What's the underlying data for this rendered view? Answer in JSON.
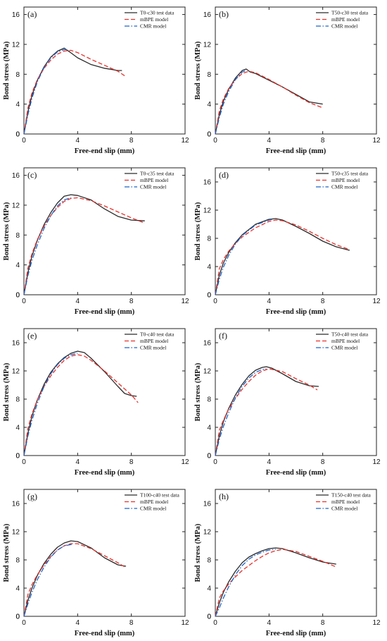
{
  "figure": {
    "xlabel": "Free-end slip (mm)",
    "ylabel": "Bond stress (MPa)"
  },
  "colors": {
    "test": "#2a2a2a",
    "mbpe": "#e8312b",
    "cmr": "#1f64c8"
  },
  "chart_data": [
    {
      "type": "line",
      "panel_label": "(a)",
      "xlabel": "Free-end slip (mm)",
      "ylabel": "Bond stress (MPa)",
      "xlim": [
        0,
        12
      ],
      "ylim": [
        0,
        17
      ],
      "xticks": [
        0,
        4,
        8,
        12
      ],
      "yticks": [
        0,
        4,
        8,
        12,
        16
      ],
      "series": [
        {
          "name": "T0-c30 test data",
          "style": "solid",
          "x": [
            0,
            0.3,
            0.6,
            1,
            1.5,
            2,
            2.5,
            3,
            3.4,
            4,
            5,
            6,
            7,
            7.3
          ],
          "y": [
            0,
            3,
            5.2,
            7.2,
            9,
            10.3,
            11.1,
            11.5,
            11,
            10.2,
            9.3,
            8.8,
            8.5,
            8.5
          ]
        },
        {
          "name": "mBPE model",
          "style": "dashed",
          "x": [
            0,
            0.3,
            0.6,
            1,
            1.5,
            2,
            2.5,
            3,
            3.5,
            4,
            5,
            6,
            7,
            7.5
          ],
          "y": [
            0,
            3.5,
            5.5,
            7.3,
            8.8,
            9.9,
            10.7,
            11.1,
            11.2,
            10.9,
            10,
            9.2,
            8.4,
            7.8
          ]
        },
        {
          "name": "CMR model",
          "style": "dashdot",
          "x": [
            0,
            0.3,
            0.6,
            1,
            1.5,
            2,
            2.5,
            3,
            3.3
          ],
          "y": [
            0,
            2.6,
            4.8,
            7,
            8.9,
            10.2,
            11,
            11.3,
            11.3
          ]
        }
      ]
    },
    {
      "type": "line",
      "panel_label": "(b)",
      "xlabel": "Free-end slip (mm)",
      "ylabel": "Bond stress (MPa)",
      "xlim": [
        0,
        12
      ],
      "ylim": [
        0,
        17
      ],
      "xticks": [
        0,
        4,
        8,
        12
      ],
      "yticks": [
        0,
        4,
        8,
        12,
        16
      ],
      "series": [
        {
          "name": "T50-c30 test data",
          "style": "solid",
          "x": [
            0,
            0.3,
            0.6,
            1,
            1.5,
            2,
            2.3,
            2.6,
            3,
            4,
            5,
            6,
            7,
            8
          ],
          "y": [
            0,
            2.6,
            4.4,
            6,
            7.5,
            8.5,
            8.7,
            8.3,
            8.1,
            7.2,
            6.3,
            5.3,
            4.3,
            4
          ]
        },
        {
          "name": "mBPE model",
          "style": "dashed",
          "x": [
            0,
            0.3,
            0.6,
            1,
            1.5,
            2,
            2.5,
            3,
            4,
            5,
            6,
            7,
            8
          ],
          "y": [
            0,
            3.1,
            4.7,
            6.1,
            7.3,
            8.1,
            8.4,
            8.2,
            7.3,
            6.3,
            5.2,
            4.2,
            3.5
          ]
        },
        {
          "name": "CMR model",
          "style": "dashdot",
          "x": [
            0,
            0.3,
            0.6,
            1,
            1.5,
            2,
            2.3
          ],
          "y": [
            0,
            2.2,
            4,
            5.7,
            7.3,
            8.3,
            8.5
          ]
        }
      ]
    },
    {
      "type": "line",
      "panel_label": "(c)",
      "xlabel": "Free-end slip (mm)",
      "ylabel": "Bond stress (MPa)",
      "xlim": [
        0,
        12
      ],
      "ylim": [
        0,
        17
      ],
      "xticks": [
        0,
        4,
        8,
        12
      ],
      "yticks": [
        0,
        4,
        8,
        12,
        16
      ],
      "series": [
        {
          "name": "T0-c35 test data",
          "style": "solid",
          "x": [
            0,
            0.3,
            0.6,
            1,
            1.5,
            2,
            2.5,
            3,
            3.5,
            4,
            5,
            6,
            7,
            8,
            9
          ],
          "y": [
            0,
            3,
            5.2,
            7.3,
            9.4,
            11,
            12.3,
            13.2,
            13.4,
            13.3,
            12.7,
            11.5,
            10.5,
            10,
            9.9
          ]
        },
        {
          "name": "mBPE model",
          "style": "dashed",
          "x": [
            0,
            0.3,
            0.6,
            1,
            1.5,
            2,
            2.5,
            3,
            3.5,
            4,
            5,
            6,
            7,
            8,
            9
          ],
          "y": [
            0,
            3.6,
            5.5,
            7.4,
            9.2,
            10.6,
            11.7,
            12.5,
            12.9,
            13,
            12.6,
            11.9,
            11.1,
            10.3,
            9.6
          ]
        },
        {
          "name": "CMR model",
          "style": "dashdot",
          "x": [
            0,
            0.3,
            0.6,
            1,
            1.5,
            2,
            2.5,
            3,
            3.5
          ],
          "y": [
            0,
            2.6,
            4.6,
            6.7,
            8.9,
            10.6,
            11.9,
            12.7,
            13
          ]
        }
      ]
    },
    {
      "type": "line",
      "panel_label": "(d)",
      "xlabel": "Free-end slip (mm)",
      "ylabel": "Bond stress (MPa)",
      "xlim": [
        0,
        12
      ],
      "ylim": [
        0,
        18
      ],
      "xticks": [
        0,
        4,
        8,
        12
      ],
      "yticks": [
        0,
        4,
        8,
        12,
        16
      ],
      "series": [
        {
          "name": "T50-c35 test data",
          "style": "solid",
          "x": [
            0,
            0.3,
            0.6,
            1,
            1.5,
            2,
            3,
            4,
            4.5,
            5,
            6,
            7,
            8,
            9,
            10
          ],
          "y": [
            0,
            2.8,
            4.5,
            6,
            7.4,
            8.5,
            10,
            10.7,
            10.8,
            10.6,
            9.7,
            8.7,
            7.6,
            6.8,
            6.3
          ]
        },
        {
          "name": "mBPE model",
          "style": "dashed",
          "x": [
            0,
            0.3,
            0.6,
            1,
            1.5,
            2,
            3,
            4,
            4.5,
            5,
            6,
            7,
            8,
            9,
            10
          ],
          "y": [
            0,
            3.7,
            5,
            6.2,
            7.3,
            8.2,
            9.5,
            10.4,
            10.6,
            10.5,
            9.9,
            9,
            8,
            7.1,
            6.4
          ]
        },
        {
          "name": "CMR model",
          "style": "dashdot",
          "x": [
            0,
            0.3,
            0.6,
            1,
            1.5,
            2,
            3,
            4,
            4.3
          ],
          "y": [
            0,
            2.2,
            3.9,
            5.6,
            7.2,
            8.4,
            9.9,
            10.6,
            10.7
          ]
        }
      ]
    },
    {
      "type": "line",
      "panel_label": "(e)",
      "xlabel": "Free-end slip (mm)",
      "ylabel": "Bond stress (MPa)",
      "xlim": [
        0,
        12
      ],
      "ylim": [
        0,
        18
      ],
      "xticks": [
        0,
        4,
        8,
        12
      ],
      "yticks": [
        0,
        4,
        8,
        12,
        16
      ],
      "series": [
        {
          "name": "T0-c40 test data",
          "style": "solid",
          "x": [
            0,
            0.3,
            0.6,
            1,
            1.5,
            2,
            2.5,
            3,
            3.5,
            4,
            4.5,
            5,
            6,
            7,
            7.5,
            8,
            8.4
          ],
          "y": [
            0,
            3.2,
            5.6,
            7.9,
            10.1,
            11.8,
            13,
            13.9,
            14.5,
            14.8,
            14.6,
            13.8,
            11.9,
            9.8,
            8.8,
            8.5,
            8.4
          ]
        },
        {
          "name": "mBPE model",
          "style": "dashed",
          "x": [
            0,
            0.3,
            0.6,
            1,
            1.5,
            2,
            2.5,
            3,
            3.5,
            4,
            4.5,
            5,
            6,
            7,
            8,
            8.5
          ],
          "y": [
            0,
            3.9,
            5.9,
            7.9,
            9.8,
            11.3,
            12.5,
            13.5,
            14.1,
            14.3,
            14.1,
            13.5,
            12,
            10.3,
            8.6,
            7.5
          ]
        },
        {
          "name": "CMR model",
          "style": "dashdot",
          "x": [
            0,
            0.3,
            0.6,
            1,
            1.5,
            2,
            2.5,
            3,
            3.5,
            4
          ],
          "y": [
            0,
            2.8,
            5,
            7.4,
            9.8,
            11.6,
            12.9,
            13.8,
            14.3,
            14.5
          ]
        }
      ]
    },
    {
      "type": "line",
      "panel_label": "(f)",
      "xlabel": "Free-end slip (mm)",
      "ylabel": "Bond stress (MPa)",
      "xlim": [
        0,
        12
      ],
      "ylim": [
        0,
        18
      ],
      "xticks": [
        0,
        4,
        8,
        12
      ],
      "yticks": [
        0,
        4,
        8,
        12,
        16
      ],
      "series": [
        {
          "name": "T50-c40 test data",
          "style": "solid",
          "x": [
            0,
            0.3,
            0.6,
            1,
            1.5,
            2,
            2.5,
            3,
            3.5,
            3.8,
            4.2,
            5,
            6,
            7,
            7.7
          ],
          "y": [
            0,
            2.8,
            4.8,
            6.7,
            8.6,
            10.1,
            11.3,
            12.1,
            12.5,
            12.6,
            12.4,
            11.6,
            10.5,
            9.9,
            9.8
          ]
        },
        {
          "name": "mBPE model",
          "style": "dashed",
          "x": [
            0,
            0.3,
            0.6,
            1,
            1.5,
            2,
            2.5,
            3,
            3.5,
            4,
            5,
            6,
            7,
            7.6
          ],
          "y": [
            0,
            3.6,
            5,
            6.6,
            8.1,
            9.4,
            10.5,
            11.4,
            12,
            12.3,
            11.9,
            10.9,
            10,
            9.3
          ]
        },
        {
          "name": "CMR model",
          "style": "dashdot",
          "x": [
            0,
            0.3,
            0.6,
            1,
            1.5,
            2,
            2.5,
            3,
            3.5,
            3.8
          ],
          "y": [
            0,
            2.3,
            4.1,
            6.1,
            8.2,
            9.8,
            11,
            11.8,
            12.2,
            12.3
          ]
        }
      ]
    },
    {
      "type": "line",
      "panel_label": "(g)",
      "xlabel": "Free-end slip (mm)",
      "ylabel": "Bond stress (MPa)",
      "xlim": [
        0,
        12
      ],
      "ylim": [
        0,
        18
      ],
      "xticks": [
        0,
        4,
        8,
        12
      ],
      "yticks": [
        0,
        4,
        8,
        12,
        16
      ],
      "series": [
        {
          "name": "T100-c40 test data",
          "style": "solid",
          "x": [
            0,
            0.3,
            0.6,
            1,
            1.5,
            2,
            2.5,
            3,
            3.5,
            4,
            5,
            6,
            7,
            7.6
          ],
          "y": [
            0,
            2.3,
            4,
            5.8,
            7.5,
            8.8,
            9.8,
            10.4,
            10.7,
            10.6,
            9.7,
            8.3,
            7.3,
            7.1
          ]
        },
        {
          "name": "mBPE model",
          "style": "dashed",
          "x": [
            0,
            0.3,
            0.6,
            1,
            1.5,
            2,
            2.5,
            3,
            3.5,
            4,
            5,
            6,
            7,
            7.6
          ],
          "y": [
            0,
            3.1,
            4.5,
            5.9,
            7.3,
            8.5,
            9.4,
            10,
            10.3,
            10.3,
            9.6,
            8.6,
            7.6,
            6.9
          ]
        },
        {
          "name": "CMR model",
          "style": "dashdot",
          "x": [
            0,
            0.3,
            0.6,
            1,
            1.5,
            2,
            2.5,
            3,
            3.6
          ],
          "y": [
            0,
            1.8,
            3.4,
            5.2,
            7,
            8.4,
            9.4,
            10,
            10.2
          ]
        }
      ]
    },
    {
      "type": "line",
      "panel_label": "(h)",
      "xlabel": "Free-end slip (mm)",
      "ylabel": "Bond stress (MPa)",
      "xlim": [
        0,
        12
      ],
      "ylim": [
        0,
        18
      ],
      "xticks": [
        0,
        4,
        8,
        12
      ],
      "yticks": [
        0,
        4,
        8,
        12,
        16
      ],
      "series": [
        {
          "name": "T150-c40 test data",
          "style": "solid",
          "x": [
            0,
            0.3,
            0.6,
            1,
            1.5,
            2,
            2.5,
            3,
            3.5,
            4,
            4.5,
            5,
            6,
            7,
            8,
            9
          ],
          "y": [
            0,
            1.9,
            3.4,
            4.9,
            6.4,
            7.6,
            8.4,
            8.9,
            9.3,
            9.6,
            9.7,
            9.6,
            9,
            8.3,
            7.7,
            7.4
          ]
        },
        {
          "name": "mBPE model",
          "style": "dashed",
          "x": [
            0,
            0.3,
            0.6,
            1,
            1.5,
            2,
            2.5,
            3,
            3.5,
            4,
            4.5,
            5,
            6,
            7,
            8,
            9
          ],
          "y": [
            0,
            2.6,
            3.6,
            4.6,
            5.6,
            6.5,
            7.2,
            7.9,
            8.5,
            9,
            9.3,
            9.5,
            9.2,
            8.5,
            7.8,
            7
          ]
        },
        {
          "name": "CMR model",
          "style": "dashdot",
          "x": [
            0,
            0.3,
            0.6,
            1,
            1.5,
            2,
            2.5,
            3,
            3.5,
            4,
            4.5
          ],
          "y": [
            0,
            1.2,
            2.6,
            4.2,
            5.9,
            7.2,
            8.1,
            8.7,
            9.1,
            9.4,
            9.5
          ]
        }
      ]
    }
  ]
}
